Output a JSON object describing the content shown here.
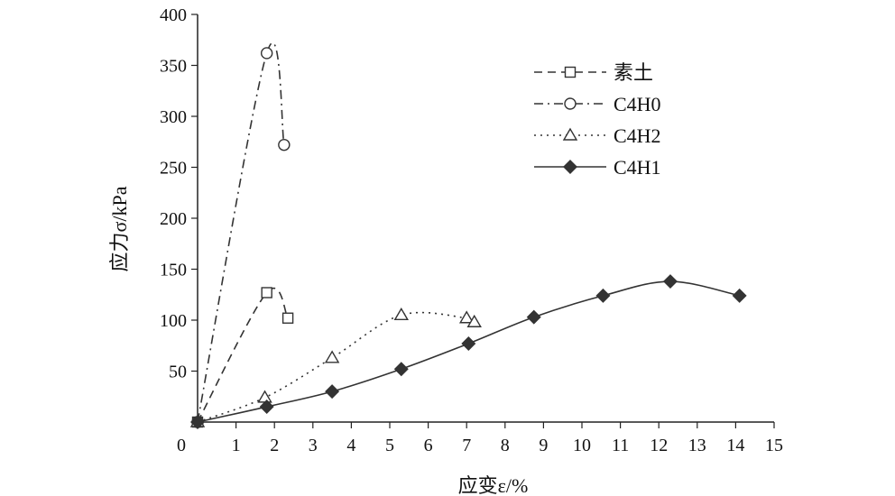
{
  "chart_data": {
    "type": "line",
    "title": "",
    "xlabel": "应变ε/%",
    "ylabel": "应力σ/kPa",
    "xlim": [
      0,
      15
    ],
    "ylim": [
      0,
      400
    ],
    "xticks": [
      "0",
      "1",
      "2",
      "3",
      "4",
      "5",
      "6",
      "7",
      "8",
      "9",
      "10",
      "11",
      "12",
      "13",
      "14",
      "15"
    ],
    "yticks": [
      "50",
      "100",
      "150",
      "200",
      "250",
      "300",
      "350",
      "400"
    ],
    "grid": false,
    "legend_position": "top-right",
    "series": [
      {
        "name": "素土",
        "marker": "square",
        "line": "dashed",
        "color": "#333333",
        "points": [
          [
            0,
            0
          ],
          [
            1.8,
            127
          ],
          [
            2.35,
            102
          ]
        ]
      },
      {
        "name": "C4H0",
        "marker": "circle",
        "line": "dash-dot",
        "color": "#333333",
        "points": [
          [
            0,
            0
          ],
          [
            1.8,
            362
          ],
          [
            2.25,
            272
          ]
        ]
      },
      {
        "name": "C4H2",
        "marker": "triangle",
        "line": "dotted",
        "color": "#333333",
        "points": [
          [
            0,
            0
          ],
          [
            1.75,
            24
          ],
          [
            3.5,
            63
          ],
          [
            5.3,
            105
          ],
          [
            7.0,
            102
          ],
          [
            7.2,
            98
          ]
        ]
      },
      {
        "name": "C4H1",
        "marker": "diamond",
        "line": "solid",
        "color": "#333333",
        "points": [
          [
            0,
            0
          ],
          [
            1.8,
            15
          ],
          [
            3.5,
            30
          ],
          [
            5.3,
            52
          ],
          [
            7.05,
            77
          ],
          [
            8.75,
            103
          ],
          [
            10.55,
            124
          ],
          [
            12.3,
            138
          ],
          [
            14.1,
            124
          ]
        ]
      }
    ]
  }
}
